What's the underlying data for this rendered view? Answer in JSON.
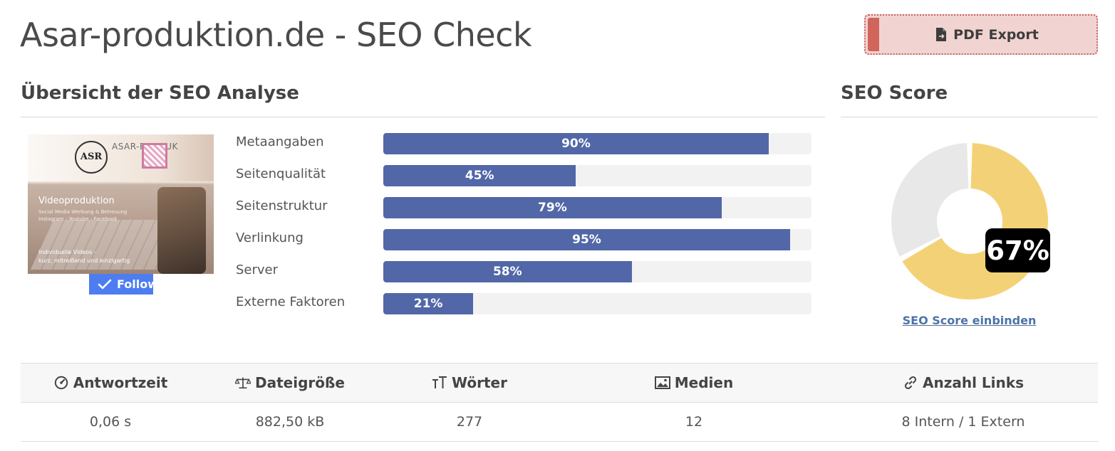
{
  "header": {
    "title": "Asar-produktion.de - SEO Check",
    "pdf_button_label": "PDF Export",
    "pdf_icon": "file-export-icon"
  },
  "overview": {
    "title": "Übersicht der SEO Analyse",
    "thumbnail": {
      "brand": "ASAR-PRODUK",
      "logo": "ASR",
      "headline": "Videoproduktion",
      "subline_1": "Social Media Werbung & Betreuung",
      "subline_2": "Instagram - Youtube - Facebook",
      "footer_1": "Individuelle Videos -",
      "footer_2": "kurz, mitreißend und einzigartig",
      "follow_label": "Follow"
    },
    "metrics": [
      {
        "label": "Metaangaben",
        "value": 90,
        "display": "90%"
      },
      {
        "label": "Seitenqualität",
        "value": 45,
        "display": "45%"
      },
      {
        "label": "Seitenstruktur",
        "value": 79,
        "display": "79%"
      },
      {
        "label": "Verlinkung",
        "value": 95,
        "display": "95%"
      },
      {
        "label": "Server",
        "value": 58,
        "display": "58%"
      },
      {
        "label": "Externe Faktoren",
        "value": 21,
        "display": "21%"
      }
    ],
    "bar_color": "#5267a7",
    "track_color": "#f2f2f2"
  },
  "score": {
    "title": "SEO Score",
    "value": 67,
    "display": "67%",
    "fill_color": "#f3d277",
    "rest_color": "#e8e8e8",
    "embed_link": "SEO Score einbinden"
  },
  "stats": {
    "headers": [
      {
        "label": "Antwortzeit",
        "icon": "speedometer-icon"
      },
      {
        "label": "Dateigröße",
        "icon": "balance-scale-icon"
      },
      {
        "label": "Wörter",
        "icon": "text-height-icon"
      },
      {
        "label": "Medien",
        "icon": "image-icon"
      },
      {
        "label": "Anzahl Links",
        "icon": "link-icon"
      }
    ],
    "values": [
      "0,06 s",
      "882,50 kB",
      "277",
      "12",
      "8 Intern / 1 Extern"
    ]
  }
}
